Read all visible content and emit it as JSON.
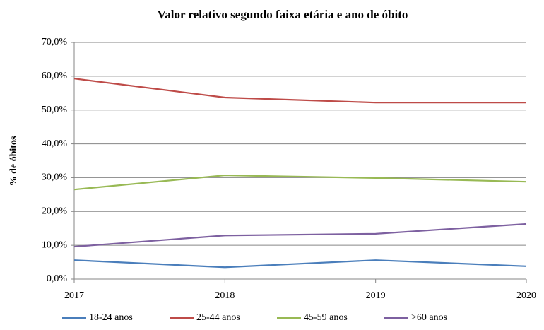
{
  "chart_data": {
    "type": "line",
    "title": "Valor relativo segundo faixa etária e ano de óbito",
    "y_label": "% de óbitos",
    "x": [
      2017,
      2018,
      2019,
      2020
    ],
    "xlim": [
      2017,
      2020
    ],
    "xticks": [
      2017,
      2018,
      2019,
      2020
    ],
    "ylim": [
      0,
      70
    ],
    "yticks": [
      {
        "value": 0,
        "label": "0,0%"
      },
      {
        "value": 10,
        "label": "10,0%"
      },
      {
        "value": 20,
        "label": "20,0%"
      },
      {
        "value": 30,
        "label": "30,0%"
      },
      {
        "value": 40,
        "label": "40,0%"
      },
      {
        "value": 50,
        "label": "50,0%"
      },
      {
        "value": 60,
        "label": "60,0%"
      },
      {
        "value": 70,
        "label": "70,0%"
      }
    ],
    "grid": true,
    "legend": "bottom",
    "series": [
      {
        "name": "18-24 anos",
        "color": "#4a7ebb",
        "values": [
          5.6,
          3.5,
          5.6,
          3.8
        ]
      },
      {
        "name": "25-44 anos",
        "color": "#be4b48",
        "values": [
          59.3,
          53.7,
          52.2,
          52.2
        ]
      },
      {
        "name": "45-59 anos",
        "color": "#98b954",
        "values": [
          26.5,
          30.7,
          29.9,
          28.8
        ]
      },
      {
        "name": ">60 anos",
        "color": "#7d60a0",
        "values": [
          9.6,
          12.9,
          13.4,
          16.3
        ]
      }
    ]
  }
}
